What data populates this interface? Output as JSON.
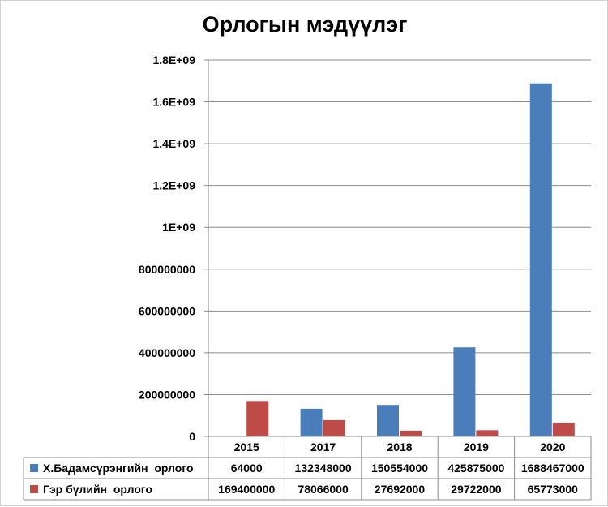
{
  "chart_data": {
    "type": "bar",
    "title": "Орлогын мэдүүлэг",
    "categories": [
      "2015",
      "2017",
      "2018",
      "2019",
      "2020"
    ],
    "series": [
      {
        "name": "Х.Бадамсүрэнгийн  орлого",
        "color": "#4a7ebb",
        "values": [
          64000,
          132348000,
          150554000,
          425875000,
          1688467000
        ],
        "labels": [
          "64000",
          "132348000",
          "150554000",
          "425875000",
          "1688467000"
        ]
      },
      {
        "name": "Гэр бүлийн  орлого",
        "color": "#be4b48",
        "values": [
          169400000,
          78066000,
          27692000,
          29722000,
          65773000
        ],
        "labels": [
          "169400000",
          "78066000",
          "27692000",
          "29722000",
          "65773000"
        ]
      }
    ],
    "ylim": [
      0,
      1800000000
    ],
    "yticks": [
      0,
      200000000,
      400000000,
      600000000,
      800000000,
      1000000000,
      1200000000,
      1400000000,
      1600000000,
      1800000000
    ],
    "ytick_labels": [
      "0",
      "200000000",
      "400000000",
      "600000000",
      "800000000",
      "1E+09",
      "1.2E+09",
      "1.4E+09",
      "1.6E+09",
      "1.8E+09"
    ],
    "grid": true,
    "legend": "data-table",
    "xlabel": "",
    "ylabel": ""
  }
}
